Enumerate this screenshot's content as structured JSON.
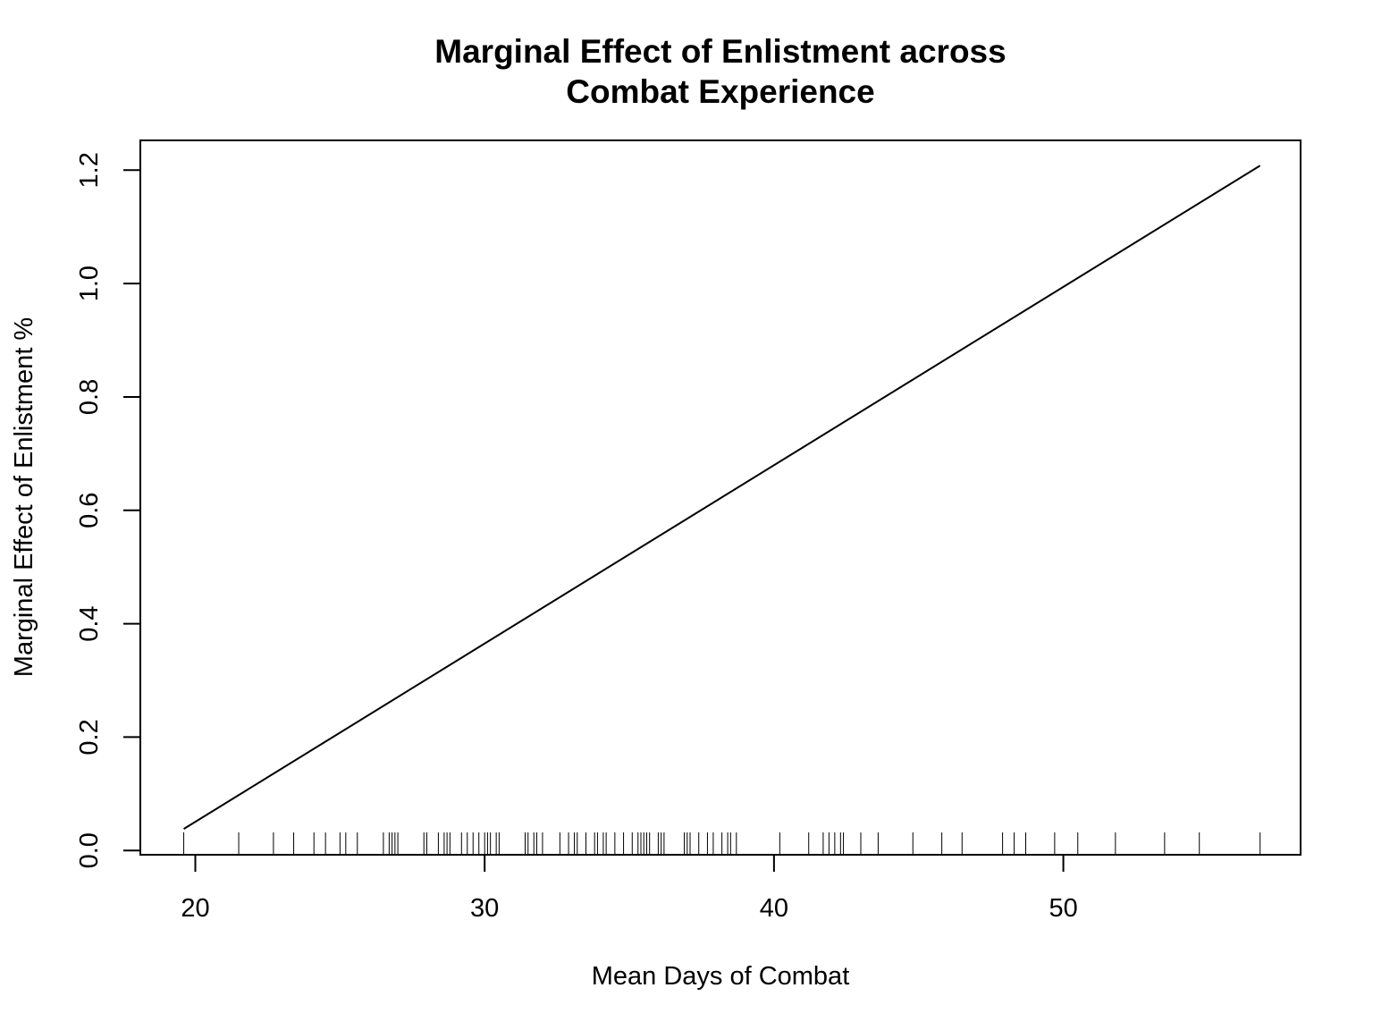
{
  "chart_data": {
    "type": "line",
    "title_lines": [
      "Marginal Effect of Enlistment across",
      "Combat Experience"
    ],
    "xlabel": "Mean Days of Combat",
    "ylabel": "Marginal Effect of Enlistment %",
    "xlim": [
      18.1,
      58.2
    ],
    "ylim": [
      -0.0075,
      1.2525
    ],
    "x_ticks": [
      20,
      30,
      40,
      50
    ],
    "x_tick_labels": [
      "20",
      "30",
      "40",
      "50"
    ],
    "y_ticks": [
      0.0,
      0.2,
      0.4,
      0.6,
      0.8,
      1.0,
      1.2
    ],
    "y_tick_labels": [
      "0.0",
      "0.2",
      "0.4",
      "0.6",
      "0.8",
      "1.0",
      "1.2"
    ],
    "grid": false,
    "line_color": "#000000",
    "series": [
      {
        "x": [
          19.6,
          56.8
        ],
        "y": [
          0.038,
          1.208
        ]
      }
    ],
    "rug": [
      19.6,
      21.5,
      22.7,
      23.4,
      24.1,
      24.5,
      25.0,
      25.2,
      25.6,
      26.5,
      26.7,
      26.8,
      26.9,
      27.0,
      27.9,
      28.0,
      28.4,
      28.6,
      28.7,
      28.8,
      29.2,
      29.4,
      29.6,
      29.8,
      30.0,
      30.1,
      30.2,
      30.4,
      30.5,
      31.4,
      31.5,
      31.7,
      31.8,
      32.0,
      32.6,
      32.9,
      33.1,
      33.2,
      33.5,
      33.8,
      33.9,
      34.1,
      34.2,
      34.5,
      34.8,
      35.1,
      35.3,
      35.4,
      35.5,
      35.6,
      35.7,
      36.0,
      36.1,
      36.2,
      36.9,
      37.0,
      37.1,
      37.4,
      37.7,
      37.9,
      38.2,
      38.4,
      38.5,
      38.7,
      40.2,
      41.2,
      41.7,
      41.9,
      42.1,
      42.3,
      42.4,
      43.0,
      43.6,
      44.8,
      45.8,
      46.5,
      47.9,
      48.3,
      48.7,
      49.7,
      50.5,
      51.8,
      53.5,
      54.7,
      56.8
    ]
  }
}
